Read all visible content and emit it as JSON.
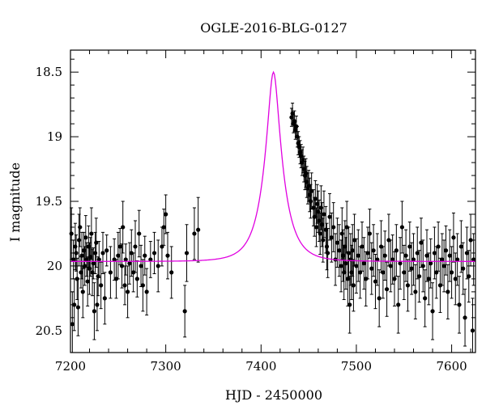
{
  "chart_data": {
    "type": "scatter",
    "title": "OGLE-2016-BLG-0127",
    "xlabel": "HJD - 2450000",
    "ylabel": "I magnitude",
    "xlim": [
      7200,
      7625
    ],
    "ylim": [
      18.33,
      20.67
    ],
    "y_inverted": true,
    "grid": false,
    "x_ticks": [
      7200,
      7300,
      7400,
      7500,
      7600
    ],
    "x_tick_labels": [
      "7200",
      "7300",
      "7400",
      "7500",
      "7600"
    ],
    "y_ticks": [
      18.5,
      19,
      19.5,
      20,
      20.5
    ],
    "y_tick_labels": [
      "18.5",
      "19",
      "19.5",
      "20",
      "20.5"
    ],
    "model": {
      "color": "#e000e0",
      "baseline_mag": 19.965,
      "peak_time": 7413,
      "peak_mag": 18.5,
      "timescale_days": 20
    },
    "observations": {
      "color": "#000000",
      "points": [
        [
          7201,
          19.75,
          0.2
        ],
        [
          7202,
          20.45,
          0.25
        ],
        [
          7203,
          19.95,
          0.15
        ],
        [
          7204,
          20.3,
          0.2
        ],
        [
          7205,
          19.85,
          0.18
        ],
        [
          7206,
          19.9,
          0.14
        ],
        [
          7207,
          20.1,
          0.16
        ],
        [
          7208,
          20.32,
          0.22
        ],
        [
          7209,
          19.8,
          0.2
        ],
        [
          7210,
          19.7,
          0.15
        ],
        [
          7211,
          20.05,
          0.12
        ],
        [
          7212,
          19.92,
          0.18
        ],
        [
          7213,
          20.2,
          0.2
        ],
        [
          7214,
          19.88,
          0.14
        ],
        [
          7215,
          20.0,
          0.15
        ],
        [
          7216,
          19.78,
          0.17
        ],
        [
          7217,
          19.95,
          0.13
        ],
        [
          7218,
          20.12,
          0.19
        ],
        [
          7219,
          19.85,
          0.16
        ],
        [
          7220,
          20.02,
          0.2
        ],
        [
          7221,
          19.93,
          0.15
        ],
        [
          7222,
          19.75,
          0.2
        ],
        [
          7223,
          20.05,
          0.18
        ],
        [
          7224,
          19.98,
          0.12
        ],
        [
          7225,
          20.35,
          0.22
        ],
        [
          7226,
          19.9,
          0.16
        ],
        [
          7227,
          19.82,
          0.19
        ],
        [
          7228,
          20.3,
          0.2
        ],
        [
          7229,
          20.08,
          0.15
        ],
        [
          7230,
          19.95,
          0.14
        ],
        [
          7232,
          20.15,
          0.18
        ],
        [
          7234,
          19.9,
          0.16
        ],
        [
          7236,
          20.25,
          0.2
        ],
        [
          7238,
          19.88,
          0.12
        ],
        [
          7242,
          20.05,
          0.2
        ],
        [
          7246,
          19.95,
          0.16
        ],
        [
          7248,
          20.1,
          0.15
        ],
        [
          7250,
          19.92,
          0.18
        ],
        [
          7252,
          19.85,
          0.14
        ],
        [
          7254,
          20.0,
          0.17
        ],
        [
          7255,
          19.7,
          0.2
        ],
        [
          7257,
          20.15,
          0.15
        ],
        [
          7258,
          19.95,
          0.12
        ],
        [
          7260,
          20.2,
          0.2
        ],
        [
          7262,
          19.98,
          0.16
        ],
        [
          7264,
          19.9,
          0.18
        ],
        [
          7266,
          20.05,
          0.15
        ],
        [
          7268,
          19.85,
          0.2
        ],
        [
          7270,
          20.1,
          0.14
        ],
        [
          7272,
          19.75,
          0.18
        ],
        [
          7274,
          20.0,
          0.16
        ],
        [
          7276,
          20.15,
          0.2
        ],
        [
          7278,
          19.92,
          0.15
        ],
        [
          7280,
          20.2,
          0.18
        ],
        [
          7284,
          19.95,
          0.14
        ],
        [
          7288,
          19.9,
          0.16
        ],
        [
          7292,
          20.0,
          0.2
        ],
        [
          7296,
          19.85,
          0.15
        ],
        [
          7298,
          19.7,
          0.14
        ],
        [
          7300,
          19.6,
          0.15
        ],
        [
          7302,
          19.92,
          0.18
        ],
        [
          7306,
          20.05,
          0.2
        ],
        [
          7320,
          20.35,
          0.2
        ],
        [
          7322,
          19.9,
          0.22
        ],
        [
          7330,
          19.75,
          0.2
        ],
        [
          7334,
          19.72,
          0.25
        ],
        [
          7432,
          18.85,
          0.07
        ],
        [
          7433,
          18.82,
          0.08
        ],
        [
          7434,
          18.9,
          0.07
        ],
        [
          7435,
          18.88,
          0.08
        ],
        [
          7436,
          18.95,
          0.07
        ],
        [
          7437,
          18.92,
          0.08
        ],
        [
          7438,
          19.0,
          0.08
        ],
        [
          7439,
          19.05,
          0.09
        ],
        [
          7440,
          19.08,
          0.08
        ],
        [
          7441,
          19.12,
          0.09
        ],
        [
          7442,
          19.15,
          0.09
        ],
        [
          7443,
          19.2,
          0.1
        ],
        [
          7444,
          19.18,
          0.1
        ],
        [
          7445,
          19.25,
          0.1
        ],
        [
          7446,
          19.3,
          0.11
        ],
        [
          7447,
          19.28,
          0.11
        ],
        [
          7448,
          19.35,
          0.12
        ],
        [
          7449,
          19.4,
          0.12
        ],
        [
          7450,
          19.38,
          0.12
        ],
        [
          7451,
          19.45,
          0.13
        ],
        [
          7452,
          19.5,
          0.13
        ],
        [
          7453,
          19.42,
          0.14
        ],
        [
          7455,
          19.55,
          0.14
        ],
        [
          7456,
          19.62,
          0.15
        ],
        [
          7457,
          19.48,
          0.14
        ],
        [
          7458,
          19.7,
          0.15
        ],
        [
          7459,
          19.52,
          0.15
        ],
        [
          7460,
          19.58,
          0.16
        ],
        [
          7461,
          19.65,
          0.16
        ],
        [
          7462,
          19.75,
          0.16
        ],
        [
          7463,
          19.55,
          0.17
        ],
        [
          7464,
          19.68,
          0.17
        ],
        [
          7465,
          19.8,
          0.17
        ],
        [
          7466,
          19.6,
          0.18
        ],
        [
          7468,
          19.72,
          0.18
        ],
        [
          7469,
          19.85,
          0.18
        ],
        [
          7470,
          19.9,
          0.19
        ],
        [
          7472,
          19.62,
          0.18
        ],
        [
          7474,
          19.78,
          0.19
        ],
        [
          7476,
          19.7,
          0.19
        ],
        [
          7478,
          19.95,
          0.2
        ],
        [
          7480,
          19.82,
          0.19
        ],
        [
          7482,
          19.88,
          0.2
        ],
        [
          7484,
          20.0,
          0.2
        ],
        [
          7485,
          19.75,
          0.2
        ],
        [
          7486,
          19.92,
          0.2
        ],
        [
          7487,
          20.05,
          0.21
        ],
        [
          7488,
          19.85,
          0.2
        ],
        [
          7489,
          19.98,
          0.2
        ],
        [
          7490,
          19.7,
          0.2
        ],
        [
          7491,
          20.1,
          0.21
        ],
        [
          7492,
          19.9,
          0.2
        ],
        [
          7493,
          20.3,
          0.22
        ],
        [
          7494,
          19.95,
          0.2
        ],
        [
          7495,
          20.05,
          0.21
        ],
        [
          7496,
          19.88,
          0.2
        ],
        [
          7497,
          20.15,
          0.2
        ],
        [
          7498,
          19.8,
          0.2
        ],
        [
          7500,
          20.0,
          0.21
        ],
        [
          7502,
          19.92,
          0.2
        ],
        [
          7504,
          20.05,
          0.2
        ],
        [
          7506,
          19.85,
          0.19
        ],
        [
          7508,
          19.98,
          0.2
        ],
        [
          7510,
          20.1,
          0.21
        ],
        [
          7512,
          19.9,
          0.2
        ],
        [
          7514,
          19.75,
          0.19
        ],
        [
          7516,
          20.02,
          0.2
        ],
        [
          7518,
          19.88,
          0.2
        ],
        [
          7520,
          20.12,
          0.21
        ],
        [
          7522,
          19.95,
          0.2
        ],
        [
          7524,
          20.25,
          0.22
        ],
        [
          7526,
          19.85,
          0.2
        ],
        [
          7528,
          20.05,
          0.2
        ],
        [
          7530,
          19.92,
          0.19
        ],
        [
          7532,
          20.18,
          0.21
        ],
        [
          7534,
          19.8,
          0.2
        ],
        [
          7536,
          20.0,
          0.2
        ],
        [
          7538,
          19.95,
          0.19
        ],
        [
          7540,
          20.1,
          0.21
        ],
        [
          7542,
          19.88,
          0.2
        ],
        [
          7544,
          20.3,
          0.22
        ],
        [
          7546,
          19.98,
          0.2
        ],
        [
          7548,
          19.7,
          0.2
        ],
        [
          7550,
          20.05,
          0.21
        ],
        [
          7552,
          19.92,
          0.2
        ],
        [
          7554,
          20.15,
          0.2
        ],
        [
          7556,
          19.85,
          0.19
        ],
        [
          7558,
          20.02,
          0.2
        ],
        [
          7560,
          19.95,
          0.2
        ],
        [
          7562,
          20.2,
          0.21
        ],
        [
          7564,
          19.9,
          0.2
        ],
        [
          7566,
          20.08,
          0.2
        ],
        [
          7568,
          19.82,
          0.19
        ],
        [
          7570,
          20.0,
          0.2
        ],
        [
          7572,
          20.25,
          0.22
        ],
        [
          7574,
          19.92,
          0.2
        ],
        [
          7576,
          20.1,
          0.2
        ],
        [
          7578,
          19.98,
          0.19
        ],
        [
          7580,
          20.35,
          0.22
        ],
        [
          7582,
          19.9,
          0.2
        ],
        [
          7584,
          20.05,
          0.2
        ],
        [
          7586,
          19.85,
          0.19
        ],
        [
          7588,
          20.15,
          0.21
        ],
        [
          7590,
          19.95,
          0.2
        ],
        [
          7592,
          20.0,
          0.2
        ],
        [
          7594,
          19.88,
          0.19
        ],
        [
          7596,
          20.2,
          0.21
        ],
        [
          7598,
          19.92,
          0.2
        ],
        [
          7600,
          20.05,
          0.2
        ],
        [
          7602,
          19.78,
          0.19
        ],
        [
          7604,
          20.1,
          0.2
        ],
        [
          7606,
          19.95,
          0.2
        ],
        [
          7608,
          20.3,
          0.22
        ],
        [
          7610,
          19.85,
          0.2
        ],
        [
          7612,
          20.02,
          0.2
        ],
        [
          7614,
          20.4,
          0.22
        ],
        [
          7616,
          19.9,
          0.2
        ],
        [
          7618,
          20.08,
          0.2
        ],
        [
          7620,
          19.8,
          0.2
        ],
        [
          7622,
          20.5,
          0.25
        ],
        [
          7623,
          19.95,
          0.2
        ]
      ]
    }
  }
}
